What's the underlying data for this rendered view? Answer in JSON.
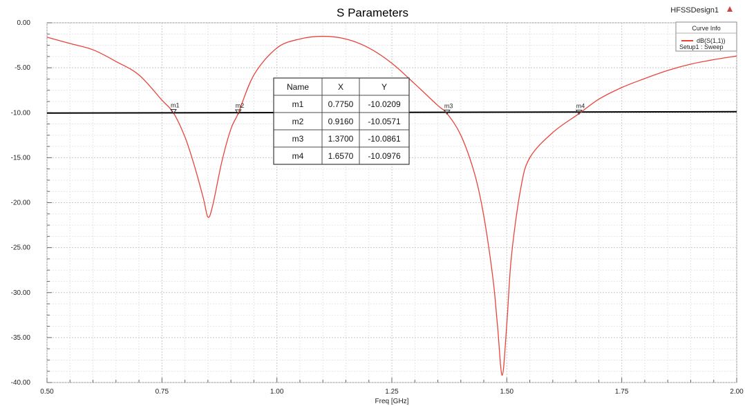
{
  "header": {
    "title": "S Parameters",
    "design_name": "HFSSDesign1"
  },
  "legend": {
    "title": "Curve Info",
    "entry": "dB(S(1,1))",
    "setup": "Setup1 : Sweep",
    "placement": "top-right",
    "color": "#e8433a"
  },
  "marker_table": {
    "headers": [
      "Name",
      "X",
      "Y"
    ],
    "rows": [
      [
        "m1",
        "0.7750",
        "-10.0209"
      ],
      [
        "m2",
        "0.9160",
        "-10.0571"
      ],
      [
        "m3",
        "1.3700",
        "-10.0861"
      ],
      [
        "m4",
        "1.6570",
        "-10.0976"
      ]
    ]
  },
  "chart_data": {
    "type": "line",
    "title": "S Parameters",
    "xlabel": "Freq [GHz]",
    "ylabel": "",
    "xlim": [
      0.5,
      2.0
    ],
    "ylim": [
      -40,
      0
    ],
    "x_ticks": [
      "0.50",
      "0.75",
      "1.00",
      "1.25",
      "1.50",
      "1.75",
      "2.00"
    ],
    "y_ticks": [
      "0.00",
      "-5.00",
      "-10.00",
      "-15.00",
      "-20.00",
      "-25.00",
      "-30.00",
      "-35.00",
      "-40.00"
    ],
    "grid": true,
    "series": [
      {
        "name": "dB(S(1,1))",
        "color": "#e8433a",
        "x": [
          0.5,
          0.55,
          0.6,
          0.65,
          0.7,
          0.75,
          0.775,
          0.8,
          0.82,
          0.84,
          0.85,
          0.86,
          0.88,
          0.9,
          0.916,
          0.95,
          1.0,
          1.05,
          1.1,
          1.15,
          1.2,
          1.25,
          1.3,
          1.35,
          1.37,
          1.4,
          1.43,
          1.45,
          1.47,
          1.48,
          1.49,
          1.5,
          1.51,
          1.53,
          1.55,
          1.6,
          1.657,
          1.7,
          1.75,
          1.8,
          1.85,
          1.9,
          1.95,
          2.0
        ],
        "values": [
          -1.6,
          -2.3,
          -3.0,
          -4.3,
          -5.8,
          -8.6,
          -10.02,
          -12.7,
          -15.8,
          -19.5,
          -21.6,
          -20.4,
          -15.5,
          -11.8,
          -10.06,
          -5.8,
          -2.8,
          -1.8,
          -1.5,
          -1.8,
          -2.8,
          -4.5,
          -6.8,
          -9.2,
          -10.09,
          -12.5,
          -16.8,
          -21.5,
          -28.5,
          -33.8,
          -39.2,
          -33.5,
          -26.0,
          -18.5,
          -15.0,
          -12.2,
          -10.1,
          -8.5,
          -7.2,
          -6.2,
          -5.3,
          -4.6,
          -4.1,
          -3.7
        ]
      }
    ],
    "reference_line": {
      "y": -10,
      "color": "#000000"
    },
    "markers": [
      {
        "name": "m1",
        "x": 0.775,
        "y": -10.0209
      },
      {
        "name": "m2",
        "x": 0.916,
        "y": -10.0571
      },
      {
        "name": "m3",
        "x": 1.37,
        "y": -10.0861
      },
      {
        "name": "m4",
        "x": 1.657,
        "y": -10.0976
      }
    ]
  }
}
